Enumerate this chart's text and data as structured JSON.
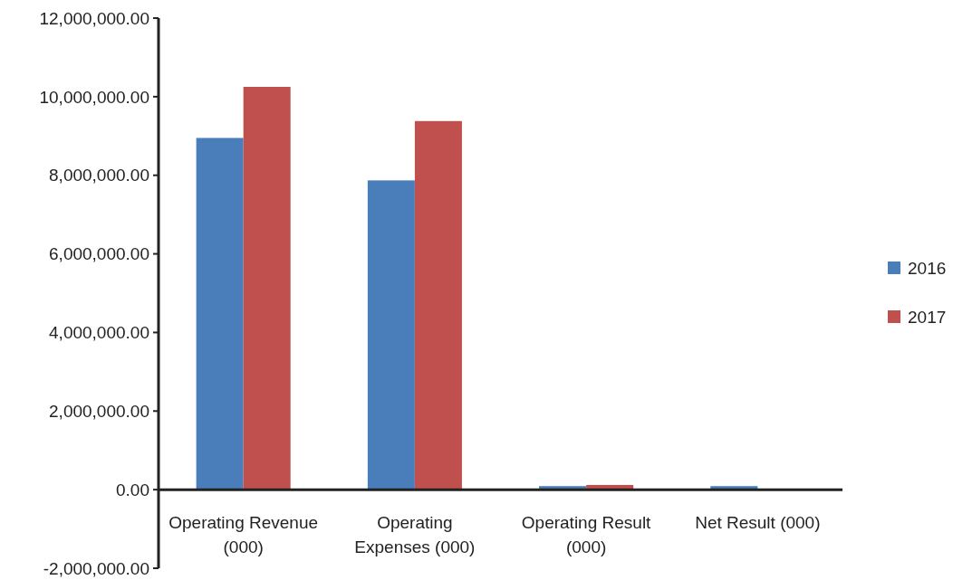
{
  "chart_data": {
    "type": "bar",
    "categories": [
      "Operating Revenue (000)",
      "Operating Expenses (000)",
      "Operating Result (000)",
      "Net Result (000)"
    ],
    "series": [
      {
        "name": "2016",
        "color": "#4a7ebb",
        "values": [
          8950000,
          7870000,
          90000,
          90000
        ]
      },
      {
        "name": "2017",
        "color": "#c0504d",
        "values": [
          10250000,
          9380000,
          120000,
          0
        ]
      }
    ],
    "ylim": [
      -2000000,
      12000000
    ],
    "yticks": [
      {
        "value": -2000000,
        "label": "-2,000,000.00"
      },
      {
        "value": 0,
        "label": "0.00"
      },
      {
        "value": 2000000,
        "label": "2,000,000.00"
      },
      {
        "value": 4000000,
        "label": "4,000,000.00"
      },
      {
        "value": 6000000,
        "label": "6,000,000.00"
      },
      {
        "value": 8000000,
        "label": "8,000,000.00"
      },
      {
        "value": 10000000,
        "label": "10,000,000.00"
      },
      {
        "value": 12000000,
        "label": "12,000,000.00"
      }
    ],
    "grid": false,
    "legend": "right"
  }
}
